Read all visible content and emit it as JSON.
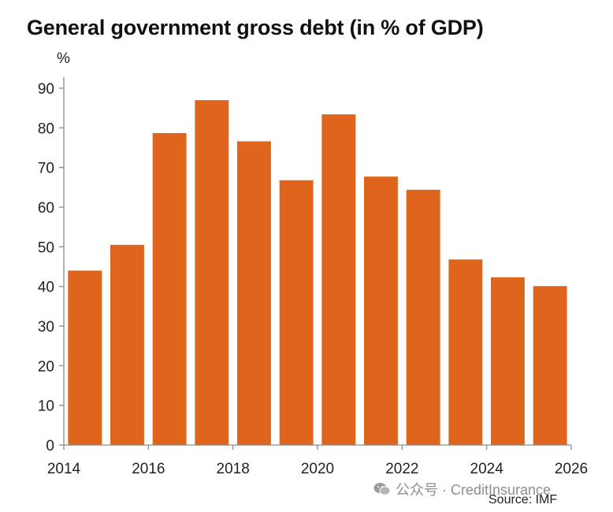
{
  "chart_data": {
    "type": "bar",
    "title": "General government gross debt (in % of GDP)",
    "ylabel": "%",
    "xlabel": "",
    "ylim": [
      0,
      90
    ],
    "yticks": [
      0,
      10,
      20,
      30,
      40,
      50,
      60,
      70,
      80,
      90
    ],
    "xlim": [
      2014,
      2026
    ],
    "xticks": [
      "2014",
      "2016",
      "2018",
      "2020",
      "2022",
      "2024",
      "2026"
    ],
    "categories": [
      2015,
      2016,
      2017,
      2018,
      2019,
      2020,
      2021,
      2022,
      2023,
      2024,
      2025,
      2026
    ],
    "values": [
      44,
      50.5,
      78.7,
      87,
      76.6,
      66.8,
      83.4,
      67.7,
      64.4,
      46.8,
      42.3,
      40.1
    ],
    "bar_color": "#e0651c",
    "grid": false,
    "legend": "none"
  },
  "source": "Source: IMF",
  "watermark": {
    "text": "公众号 · CreditInsurance",
    "icon": "wechat-icon"
  }
}
